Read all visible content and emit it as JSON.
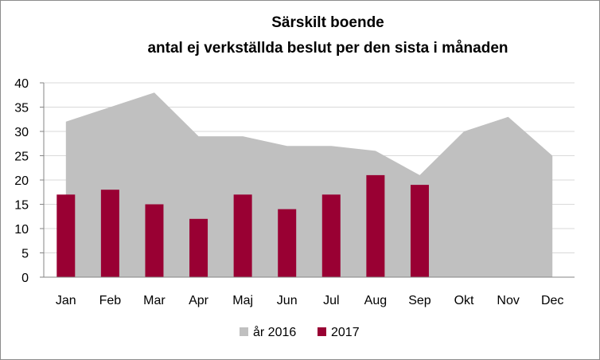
{
  "chart_data": {
    "type": "bar",
    "title_lines": [
      "Särskilt boende",
      "antal ej verkställda beslut per den sista i månaden"
    ],
    "categories": [
      "Jan",
      "Feb",
      "Mar",
      "Apr",
      "Maj",
      "Jun",
      "Jul",
      "Aug",
      "Sep",
      "Okt",
      "Nov",
      "Dec"
    ],
    "ylim": [
      0,
      40
    ],
    "yticks": [
      "0",
      "5",
      "10",
      "15",
      "20",
      "25",
      "30",
      "35",
      "40"
    ],
    "grid": true,
    "legend_position": "bottom",
    "series": [
      {
        "name": "år 2016",
        "kind": "area",
        "color": "#c0c0c0",
        "values": [
          32,
          35,
          38,
          29,
          29,
          27,
          27,
          26,
          21,
          30,
          33,
          25
        ]
      },
      {
        "name": "2017",
        "kind": "bar",
        "color": "#990033",
        "values": [
          17,
          18,
          15,
          12,
          17,
          14,
          17,
          21,
          19,
          null,
          null,
          null
        ]
      }
    ]
  }
}
